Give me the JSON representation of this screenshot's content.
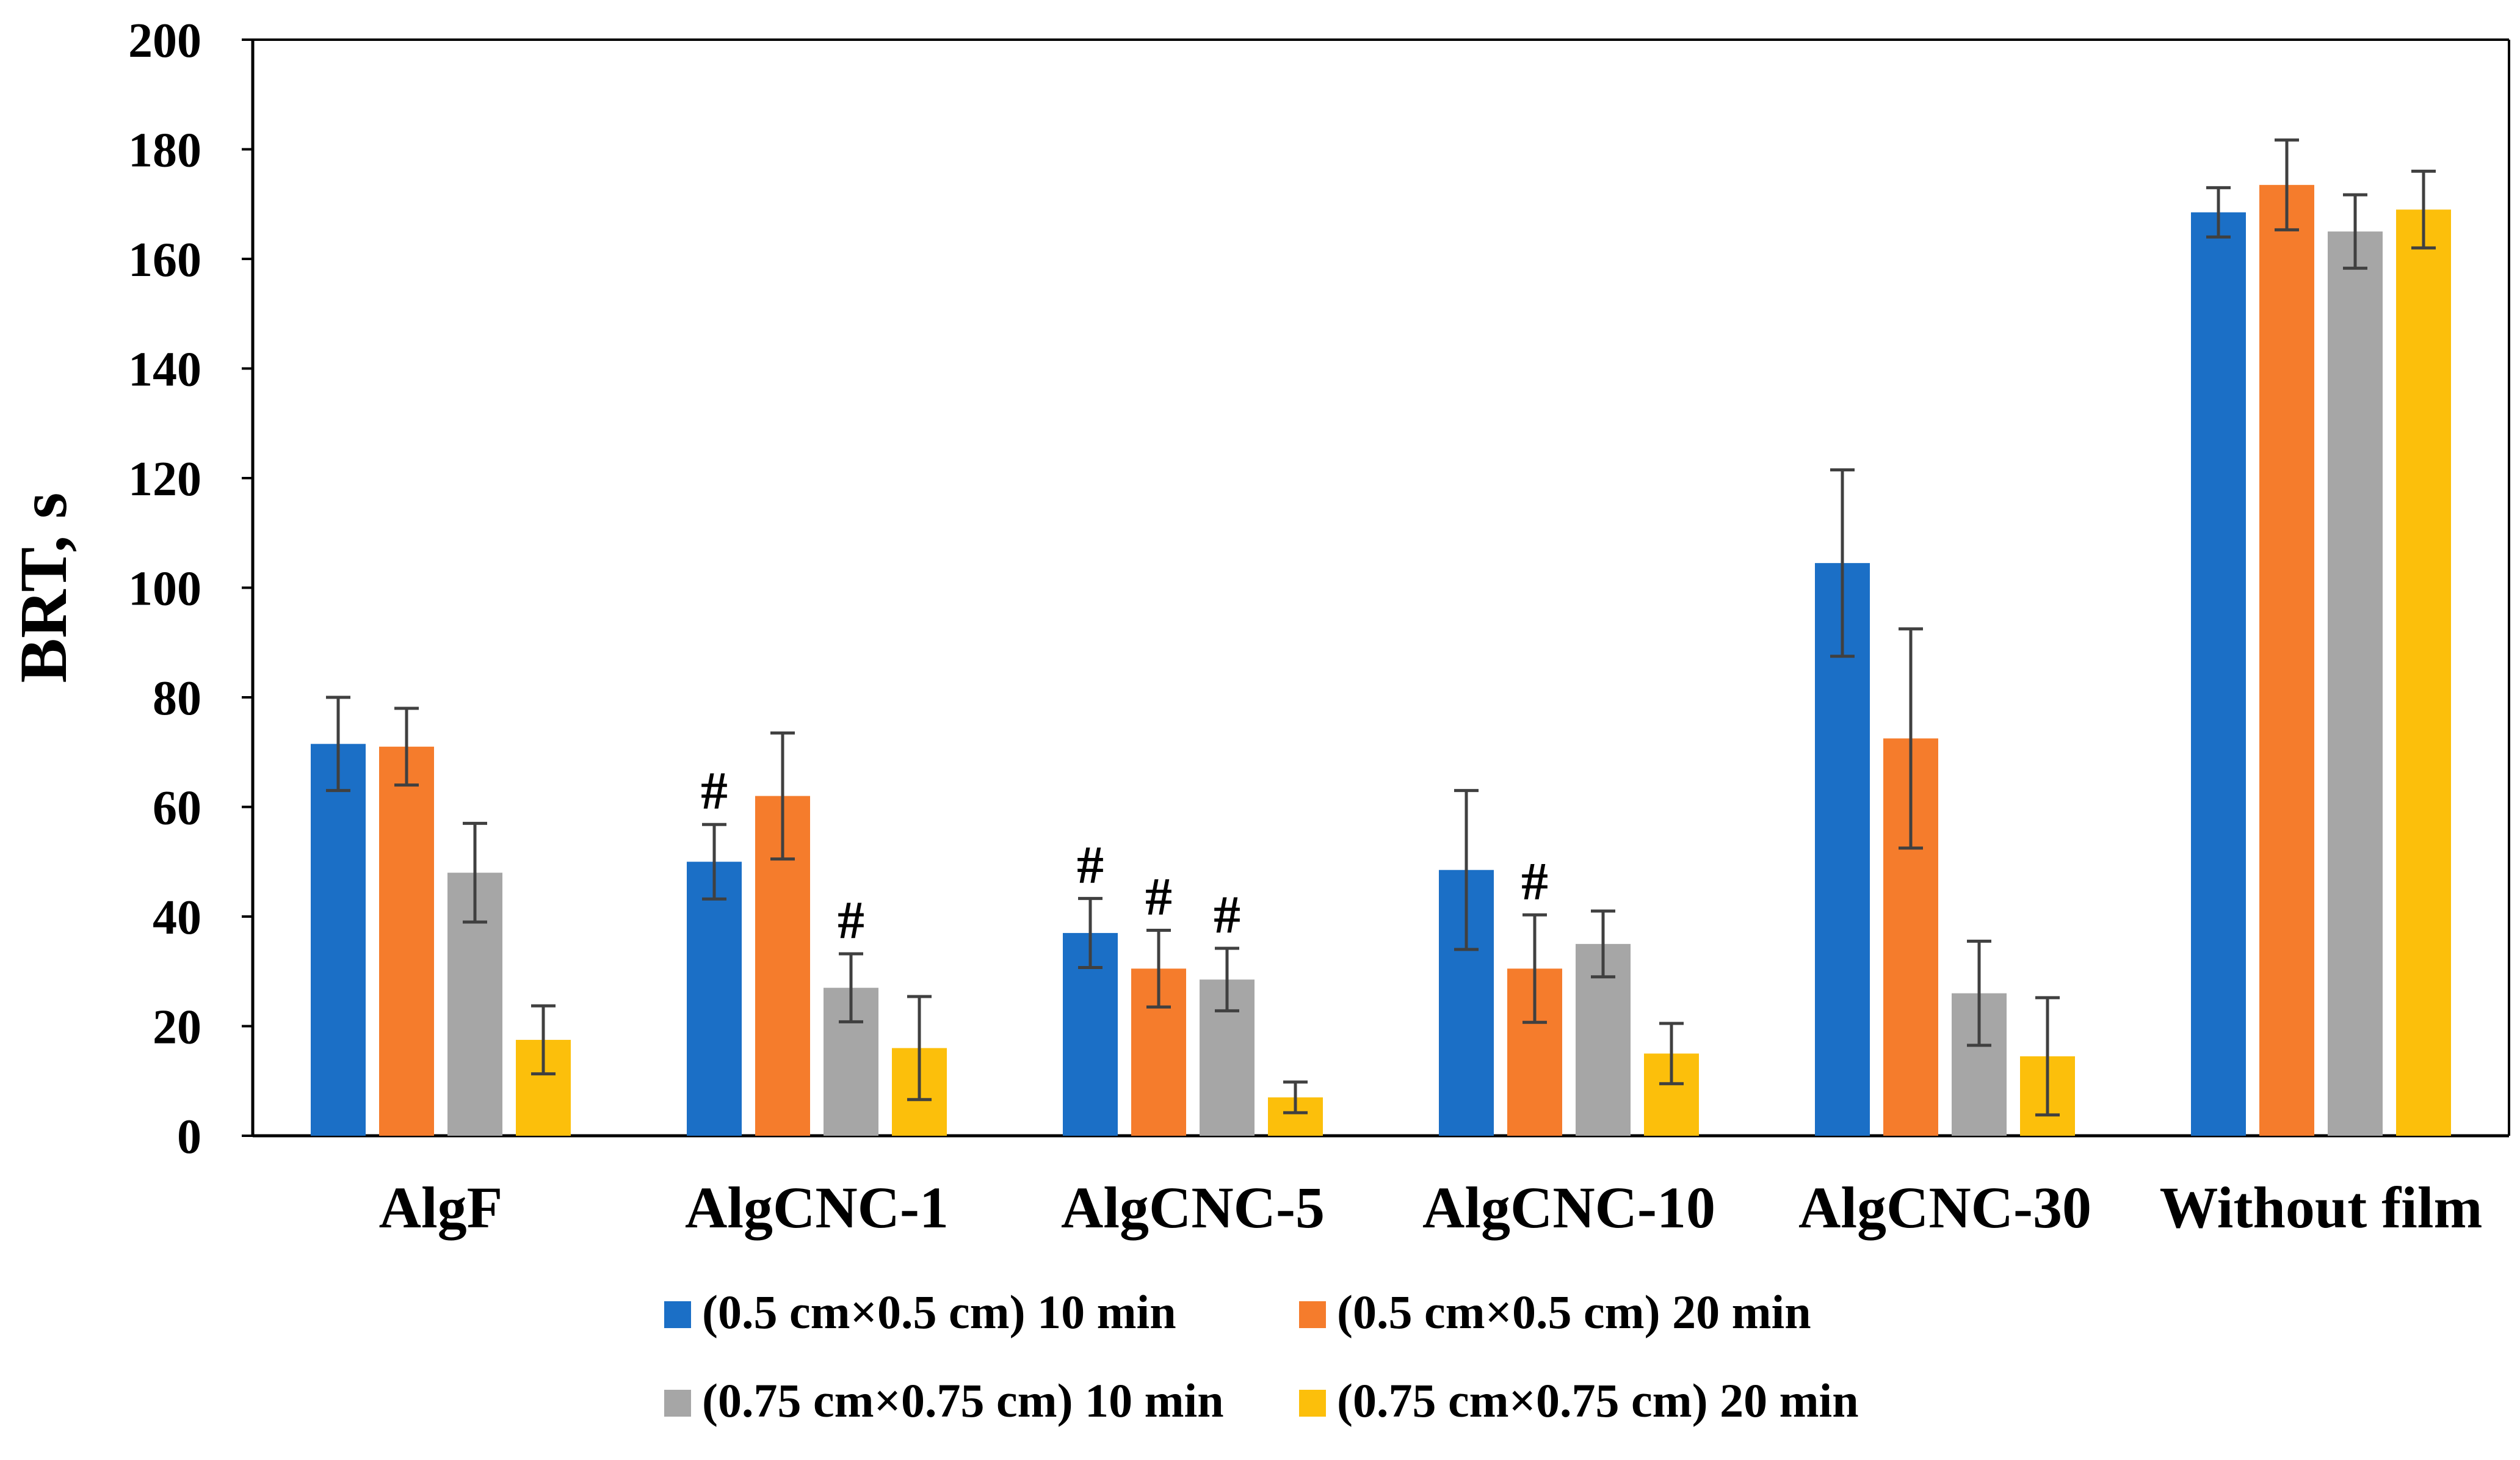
{
  "chart_data": {
    "type": "bar",
    "title": "",
    "xlabel": "",
    "ylabel": "BRT, s",
    "ylim": [
      0,
      200
    ],
    "yticks": [
      0,
      20,
      40,
      60,
      80,
      100,
      120,
      140,
      160,
      180,
      200
    ],
    "grid": false,
    "categories": [
      "AlgF",
      "AlgCNC-1",
      "AlgCNC-5",
      "AlgCNC-10",
      "AlgCNC-30",
      "Without film"
    ],
    "series": [
      {
        "name": "(0.5 cm×0.5 cm) 10 min",
        "color": "#1b6fc6",
        "values": [
          71.5,
          50,
          37,
          48.5,
          104.5,
          168.5
        ],
        "errors": [
          8.5,
          6.8,
          6.3,
          14.5,
          17,
          4.5
        ]
      },
      {
        "name": "(0.5 cm×0.5 cm) 20 min",
        "color": "#f57c2c",
        "values": [
          71,
          62,
          30.5,
          30.5,
          72.5,
          173.5
        ],
        "errors": [
          7,
          11.5,
          7,
          9.8,
          20,
          8.2
        ]
      },
      {
        "name": "(0.75 cm×0.75 cm) 10 min",
        "color": "#a6a6a6",
        "values": [
          48,
          27,
          28.5,
          35,
          26,
          165
        ],
        "errors": [
          9,
          6.2,
          5.7,
          6,
          9.5,
          6.7
        ]
      },
      {
        "name": "(0.75 cm×0.75 cm) 20 min",
        "color": "#fcbf0b",
        "values": [
          17.5,
          16,
          7,
          15,
          14.5,
          169
        ],
        "errors": [
          6.2,
          9.4,
          2.8,
          5.5,
          10.7,
          7
        ]
      }
    ],
    "annotations": [
      {
        "text": "#",
        "category": 1,
        "series": 0
      },
      {
        "text": "#",
        "category": 1,
        "series": 2
      },
      {
        "text": "#",
        "category": 2,
        "series": 0
      },
      {
        "text": "#",
        "category": 2,
        "series": 1
      },
      {
        "text": "#",
        "category": 2,
        "series": 2
      },
      {
        "text": "#",
        "category": 3,
        "series": 1
      }
    ],
    "legend_position": "bottom"
  }
}
